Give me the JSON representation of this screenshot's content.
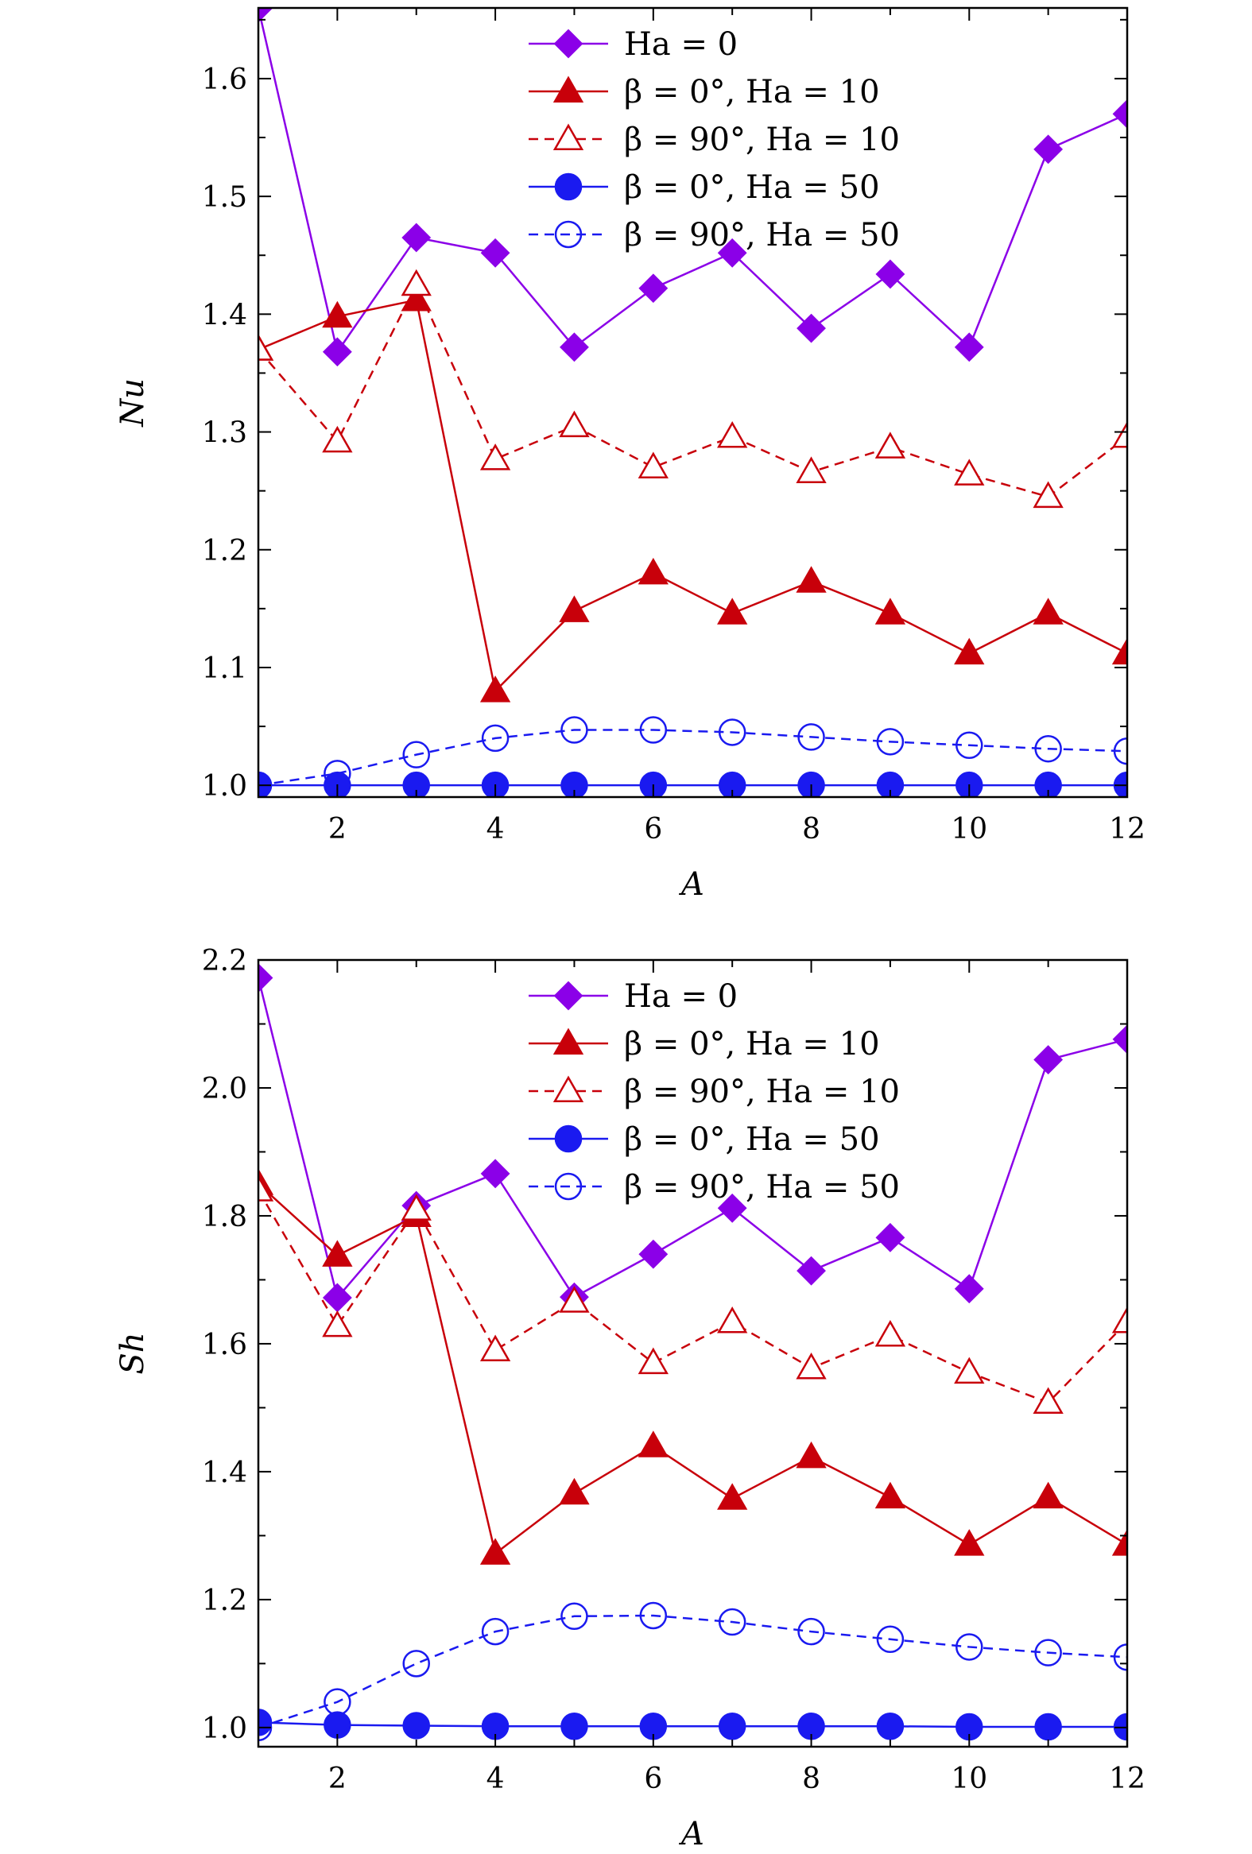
{
  "chart_data": [
    {
      "type": "line",
      "title": "",
      "xlabel": "A",
      "ylabel": "Nu",
      "xlim": [
        1,
        12
      ],
      "ylim": [
        0.99,
        1.66
      ],
      "xticks": [
        2,
        4,
        6,
        8,
        10,
        12
      ],
      "xtick_labels": [
        "2",
        "4",
        "6",
        "8",
        "10",
        "12"
      ],
      "yticks": [
        1.0,
        1.1,
        1.2,
        1.3,
        1.4,
        1.5,
        1.6
      ],
      "ytick_labels": [
        "1.0",
        "1.1",
        "1.2",
        "1.3",
        "1.4",
        "1.5",
        "1.6"
      ],
      "legend_position": "top-center",
      "x": [
        1,
        2,
        3,
        4,
        5,
        6,
        7,
        8,
        9,
        10,
        11,
        12
      ],
      "series": [
        {
          "name": "Ha = 0",
          "color": "#8B00E8",
          "marker": "diamond-filled",
          "line": "solid",
          "values": [
            1.66,
            1.368,
            1.465,
            1.452,
            1.372,
            1.422,
            1.452,
            1.388,
            1.434,
            1.372,
            1.54,
            1.57
          ]
        },
        {
          "name": "β = 0°, Ha = 10",
          "color": "#C8000A",
          "marker": "triangle-filled",
          "line": "solid",
          "values": [
            1.37,
            1.398,
            1.412,
            1.08,
            1.148,
            1.18,
            1.146,
            1.173,
            1.146,
            1.112,
            1.146,
            1.112
          ]
        },
        {
          "name": "β = 90°, Ha = 10",
          "color": "#C8000A",
          "marker": "triangle-open",
          "line": "dashed",
          "values": [
            1.37,
            1.292,
            1.425,
            1.277,
            1.305,
            1.27,
            1.296,
            1.266,
            1.287,
            1.264,
            1.245,
            1.296
          ]
        },
        {
          "name": "β = 0°, Ha = 50",
          "color": "#1A1AF0",
          "marker": "circle-filled",
          "line": "solid",
          "values": [
            1.0,
            1.0,
            1.0,
            1.0,
            1.0,
            1.0,
            1.0,
            1.0,
            1.0,
            1.0,
            1.0,
            1.0
          ]
        },
        {
          "name": "β = 90°, Ha = 50",
          "color": "#1A1AF0",
          "marker": "circle-open",
          "line": "dashed",
          "values": [
            1.0,
            1.01,
            1.026,
            1.04,
            1.047,
            1.047,
            1.045,
            1.041,
            1.037,
            1.034,
            1.031,
            1.029
          ]
        }
      ]
    },
    {
      "type": "line",
      "title": "",
      "xlabel": "A",
      "ylabel": "Sh",
      "xlim": [
        1,
        12
      ],
      "ylim": [
        0.97,
        2.2
      ],
      "xticks": [
        2,
        4,
        6,
        8,
        10,
        12
      ],
      "xtick_labels": [
        "2",
        "4",
        "6",
        "8",
        "10",
        "12"
      ],
      "yticks": [
        1.0,
        1.2,
        1.4,
        1.6,
        1.8,
        2.0,
        2.2
      ],
      "ytick_labels": [
        "1.0",
        "1.2",
        "1.4",
        "1.6",
        "1.8",
        "2.0",
        "2.2"
      ],
      "legend_position": "top-center",
      "x": [
        1,
        2,
        3,
        4,
        5,
        6,
        7,
        8,
        9,
        10,
        11,
        12
      ],
      "series": [
        {
          "name": "Ha = 0",
          "color": "#8B00E8",
          "marker": "diamond-filled",
          "line": "solid",
          "values": [
            2.172,
            1.672,
            1.816,
            1.866,
            1.673,
            1.74,
            1.812,
            1.714,
            1.766,
            1.686,
            2.044,
            2.076
          ]
        },
        {
          "name": "β = 0°, Ha = 10",
          "color": "#C8000A",
          "marker": "triangle-filled",
          "line": "solid",
          "values": [
            1.85,
            1.738,
            1.8,
            1.272,
            1.366,
            1.44,
            1.358,
            1.423,
            1.36,
            1.286,
            1.36,
            1.286
          ]
        },
        {
          "name": "β = 90°, Ha = 10",
          "color": "#C8000A",
          "marker": "triangle-open",
          "line": "dashed",
          "values": [
            1.84,
            1.628,
            1.81,
            1.59,
            1.666,
            1.57,
            1.634,
            1.562,
            1.613,
            1.555,
            1.508,
            1.634
          ]
        },
        {
          "name": "β = 0°, Ha = 50",
          "color": "#1A1AF0",
          "marker": "circle-filled",
          "line": "solid",
          "values": [
            1.008,
            1.004,
            1.003,
            1.002,
            1.002,
            1.002,
            1.002,
            1.002,
            1.002,
            1.001,
            1.001,
            1.001
          ]
        },
        {
          "name": "β = 90°, Ha = 50",
          "color": "#1A1AF0",
          "marker": "circle-open",
          "line": "dashed",
          "values": [
            1.0,
            1.04,
            1.1,
            1.15,
            1.174,
            1.175,
            1.165,
            1.15,
            1.138,
            1.126,
            1.117,
            1.11
          ]
        }
      ]
    }
  ]
}
